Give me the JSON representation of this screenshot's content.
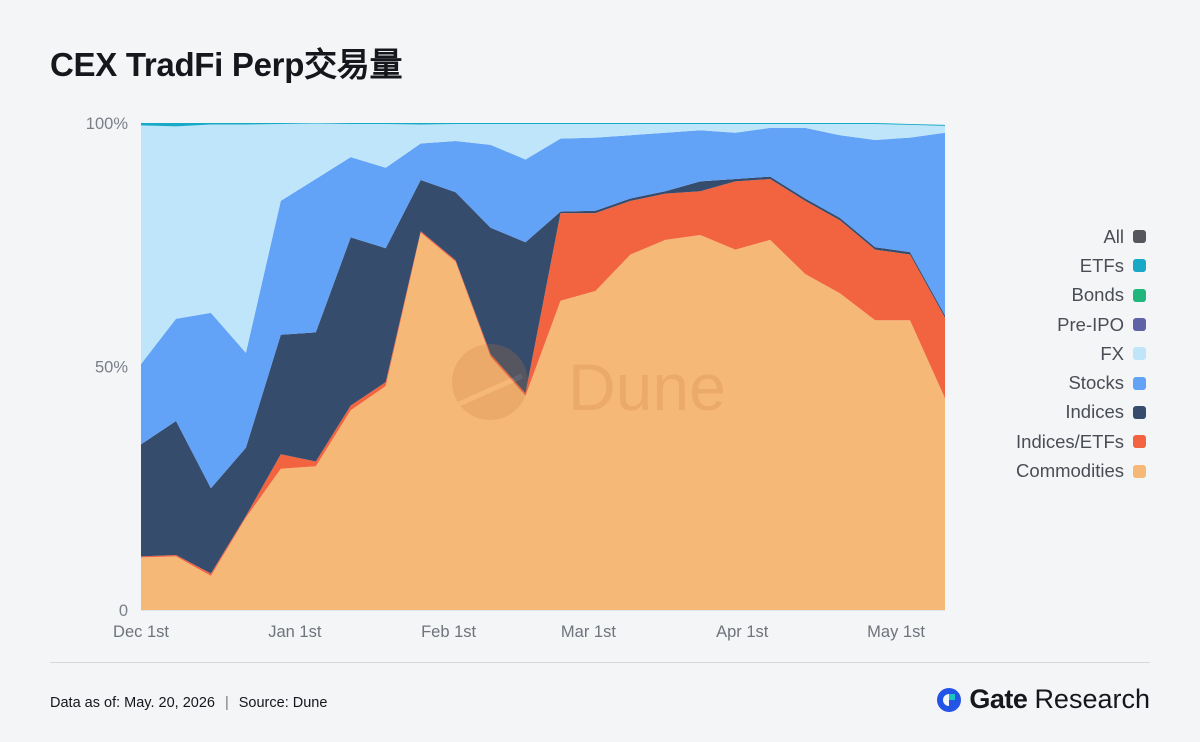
{
  "header": {
    "title": "CEX TradFi Perp交易量"
  },
  "chart_data": {
    "type": "area",
    "stacked": true,
    "normalized": true,
    "watermark": "Dune",
    "yticks": [
      "100%",
      "50%",
      "0"
    ],
    "ylim": [
      0,
      100
    ],
    "xticks": [
      {
        "label": "Dec 1st",
        "x": 0
      },
      {
        "label": "Jan 1st",
        "x": 4.4
      },
      {
        "label": "Feb 1st",
        "x": 8.8
      },
      {
        "label": "Mar 1st",
        "x": 12.8
      },
      {
        "label": "Apr 1st",
        "x": 17.2
      },
      {
        "label": "May 1st",
        "x": 21.6
      }
    ],
    "x": [
      0,
      1,
      2,
      3,
      4,
      5,
      6,
      7,
      8,
      9,
      10,
      11,
      12,
      13,
      14,
      15,
      16,
      17,
      18,
      19,
      20,
      21,
      22,
      23
    ],
    "legend_position": "right",
    "series": [
      {
        "name": "Commodities",
        "color": "#f6b877",
        "values": [
          10.8,
          11.0,
          7.0,
          19.0,
          29.0,
          29.5,
          41.0,
          46.0,
          77.5,
          71.5,
          52.0,
          44.0,
          63.5,
          65.5,
          73.0,
          76.0,
          77.0,
          74.0,
          76.0,
          69.0,
          65.0,
          59.5,
          59.5,
          43.5
        ]
      },
      {
        "name": "Indices/ETFs",
        "color": "#f26340",
        "values": [
          0.2,
          0.3,
          0.5,
          0.3,
          3.0,
          1.0,
          1.0,
          0.8,
          0.3,
          0.3,
          0.5,
          0.5,
          18.0,
          16.0,
          11.0,
          9.5,
          9.0,
          14.0,
          12.5,
          15.0,
          15.0,
          14.5,
          13.5,
          16.5
        ]
      },
      {
        "name": "Indices",
        "color": "#364c6d",
        "values": [
          23.0,
          27.5,
          17.5,
          14.0,
          24.5,
          26.5,
          34.5,
          27.5,
          10.5,
          14.0,
          26.0,
          31.0,
          0.3,
          0.5,
          0.5,
          0.5,
          2.0,
          0.5,
          0.5,
          0.5,
          0.5,
          0.5,
          0.5,
          0.5
        ]
      },
      {
        "name": "Stocks",
        "color": "#62a3f7",
        "values": [
          16.5,
          21.0,
          36.0,
          19.5,
          27.5,
          31.5,
          16.5,
          16.5,
          7.5,
          10.5,
          17.0,
          17.0,
          15.0,
          15.0,
          13.0,
          12.0,
          10.5,
          9.5,
          10.0,
          14.5,
          17.0,
          22.0,
          23.5,
          37.5
        ]
      },
      {
        "name": "FX",
        "color": "#bfe5fa",
        "values": [
          49.0,
          39.5,
          38.7,
          46.9,
          15.8,
          11.4,
          6.8,
          9.0,
          3.9,
          3.5,
          4.3,
          7.3,
          3.0,
          2.8,
          2.3,
          1.8,
          1.3,
          1.8,
          0.8,
          0.8,
          2.3,
          3.3,
          2.6,
          1.4
        ]
      },
      {
        "name": "Pre-IPO",
        "color": "#5e62a6",
        "values": [
          0,
          0,
          0,
          0,
          0,
          0,
          0,
          0,
          0,
          0,
          0,
          0,
          0,
          0,
          0,
          0,
          0,
          0,
          0,
          0,
          0,
          0,
          0,
          0
        ]
      },
      {
        "name": "Bonds",
        "color": "#1fb77c",
        "values": [
          0,
          0,
          0,
          0,
          0,
          0,
          0,
          0,
          0,
          0,
          0,
          0,
          0,
          0,
          0,
          0,
          0,
          0,
          0,
          0,
          0,
          0,
          0,
          0
        ]
      },
      {
        "name": "ETFs",
        "color": "#17a9c6",
        "values": [
          0.5,
          0.7,
          0.3,
          0.3,
          0.2,
          0.1,
          0.2,
          0.2,
          0.3,
          0.2,
          0.2,
          0.2,
          0.2,
          0.2,
          0.2,
          0.2,
          0.2,
          0.2,
          0.2,
          0.2,
          0.2,
          0.2,
          0.2,
          0.2
        ]
      },
      {
        "name": "All",
        "color": "#55575c",
        "values": [
          0,
          0,
          0,
          0,
          0,
          0,
          0,
          0,
          0,
          0,
          0,
          0,
          0,
          0,
          0,
          0,
          0,
          0,
          0,
          0,
          0,
          0,
          0,
          0
        ]
      }
    ],
    "legend_order": [
      "All",
      "ETFs",
      "Bonds",
      "Pre-IPO",
      "FX",
      "Stocks",
      "Indices",
      "Indices/ETFs",
      "Commodities"
    ]
  },
  "footer": {
    "data_as_of": "Data as of: May. 20, 2026",
    "separator": "|",
    "source": "Source:  Dune"
  },
  "brand": {
    "gate": "Gate",
    "research": "Research",
    "logo_color": "#2354e6"
  }
}
